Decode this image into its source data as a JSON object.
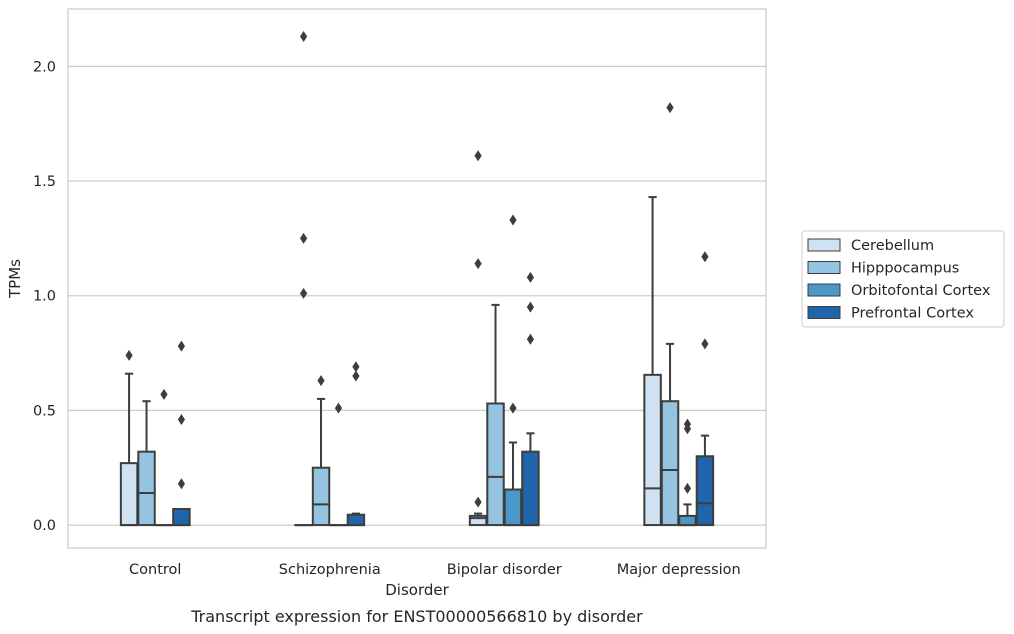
{
  "chart_data": {
    "type": "box",
    "title": "Transcript expression for ENST00000566810 by disorder",
    "xlabel": "Disorder",
    "ylabel": "TPMs",
    "ylim": [
      -0.1,
      2.25
    ],
    "yticks": [
      0.0,
      0.5,
      1.0,
      1.5,
      2.0
    ],
    "ytick_labels": [
      "0.0",
      "0.5",
      "1.0",
      "1.5",
      "2.0"
    ],
    "grid": "horizontal",
    "legend_position": "right",
    "categories": [
      "Control",
      "Schizophrenia",
      "Bipolar disorder",
      "Major depression"
    ],
    "series": [
      {
        "name": "Cerebellum",
        "color": "#d0e1f2",
        "boxes": [
          {
            "q1": 0.0,
            "median": 0.0,
            "q3": 0.27,
            "whisker_low": 0.0,
            "whisker_high": 0.66,
            "outliers": [
              0.74
            ]
          },
          {
            "q1": 0.0,
            "median": 0.0,
            "q3": 0.0,
            "whisker_low": 0.0,
            "whisker_high": 0.0,
            "outliers": [
              2.13,
              1.25,
              1.01
            ]
          },
          {
            "q1": 0.0,
            "median": 0.03,
            "q3": 0.04,
            "whisker_low": 0.0,
            "whisker_high": 0.05,
            "outliers": [
              0.1,
              1.14,
              1.61
            ]
          },
          {
            "q1": 0.0,
            "median": 0.16,
            "q3": 0.655,
            "whisker_low": 0.0,
            "whisker_high": 1.43,
            "outliers": []
          }
        ]
      },
      {
        "name": "Hipppocampus",
        "color": "#94c4df",
        "boxes": [
          {
            "q1": 0.0,
            "median": 0.14,
            "q3": 0.32,
            "whisker_low": 0.0,
            "whisker_high": 0.54,
            "outliers": []
          },
          {
            "q1": 0.0,
            "median": 0.09,
            "q3": 0.25,
            "whisker_low": 0.0,
            "whisker_high": 0.55,
            "outliers": [
              0.63
            ]
          },
          {
            "q1": 0.0,
            "median": 0.21,
            "q3": 0.53,
            "whisker_low": 0.0,
            "whisker_high": 0.96,
            "outliers": []
          },
          {
            "q1": 0.0,
            "median": 0.24,
            "q3": 0.54,
            "whisker_low": 0.0,
            "whisker_high": 0.79,
            "outliers": [
              1.82
            ]
          }
        ]
      },
      {
        "name": "Orbitofontal Cortex",
        "color": "#4a98c9",
        "boxes": [
          {
            "q1": 0.0,
            "median": 0.0,
            "q3": 0.0,
            "whisker_low": 0.0,
            "whisker_high": 0.0,
            "outliers": [
              0.57
            ]
          },
          {
            "q1": 0.0,
            "median": 0.0,
            "q3": 0.0,
            "whisker_low": 0.0,
            "whisker_high": 0.0,
            "outliers": [
              0.51
            ]
          },
          {
            "q1": 0.0,
            "median": 0.0,
            "q3": 0.155,
            "whisker_low": 0.0,
            "whisker_high": 0.36,
            "outliers": [
              0.51,
              1.33
            ]
          },
          {
            "q1": 0.0,
            "median": 0.0,
            "q3": 0.04,
            "whisker_low": 0.0,
            "whisker_high": 0.09,
            "outliers": [
              0.16,
              0.42,
              0.44
            ]
          }
        ]
      },
      {
        "name": "Prefrontal Cortex",
        "color": "#2064ab",
        "boxes": [
          {
            "q1": 0.0,
            "median": 0.0,
            "q3": 0.07,
            "whisker_low": 0.0,
            "whisker_high": 0.07,
            "outliers": [
              0.18,
              0.46,
              0.78
            ]
          },
          {
            "q1": 0.0,
            "median": 0.0,
            "q3": 0.045,
            "whisker_low": 0.0,
            "whisker_high": 0.05,
            "outliers": [
              0.65,
              0.69
            ]
          },
          {
            "q1": 0.0,
            "median": 0.0,
            "q3": 0.32,
            "whisker_low": 0.0,
            "whisker_high": 0.4,
            "outliers": [
              0.81,
              0.95,
              1.08
            ]
          },
          {
            "q1": 0.0,
            "median": 0.095,
            "q3": 0.3,
            "whisker_low": 0.0,
            "whisker_high": 0.39,
            "outliers": [
              0.79,
              1.17
            ]
          }
        ]
      }
    ]
  }
}
